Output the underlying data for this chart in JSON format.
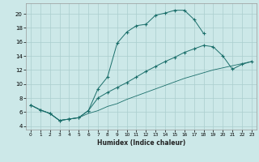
{
  "xlabel": "Humidex (Indice chaleur)",
  "background_color": "#cce8e8",
  "grid_color": "#aacece",
  "line_color": "#1a6e6a",
  "xlim": [
    -0.5,
    23.5
  ],
  "ylim": [
    3.5,
    21.5
  ],
  "xticks": [
    0,
    1,
    2,
    3,
    4,
    5,
    6,
    7,
    8,
    9,
    10,
    11,
    12,
    13,
    14,
    15,
    16,
    17,
    18,
    19,
    20,
    21,
    22,
    23
  ],
  "yticks": [
    4,
    6,
    8,
    10,
    12,
    14,
    16,
    18,
    20
  ],
  "line1_x": [
    0,
    1,
    2,
    3,
    4,
    5,
    6,
    7,
    8,
    9,
    10,
    11,
    12,
    13,
    14,
    15,
    16,
    17,
    18
  ],
  "line1_y": [
    7.0,
    6.3,
    5.8,
    4.8,
    5.0,
    5.2,
    6.2,
    9.3,
    11.0,
    15.8,
    17.4,
    18.3,
    18.5,
    19.8,
    20.1,
    20.5,
    20.5,
    19.2,
    17.2
  ],
  "line2_x": [
    0,
    1,
    2,
    3,
    4,
    5,
    6,
    7,
    8,
    9,
    10,
    11,
    12,
    13,
    14,
    15,
    16,
    17,
    18,
    19,
    20,
    21,
    22,
    23
  ],
  "line2_y": [
    7.0,
    6.3,
    5.8,
    4.8,
    5.0,
    5.2,
    5.8,
    6.2,
    6.8,
    7.2,
    7.8,
    8.3,
    8.8,
    9.3,
    9.8,
    10.3,
    10.8,
    11.2,
    11.6,
    12.0,
    12.3,
    12.6,
    12.9,
    13.2
  ],
  "line3_x": [
    0,
    1,
    2,
    3,
    4,
    5,
    6,
    7,
    8,
    9,
    10,
    11,
    12,
    13,
    14,
    15,
    16,
    17,
    18,
    19,
    20,
    21,
    22,
    23
  ],
  "line3_y": [
    7.0,
    6.3,
    5.8,
    4.8,
    5.0,
    5.2,
    6.2,
    8.0,
    8.8,
    9.5,
    10.2,
    11.0,
    11.8,
    12.5,
    13.2,
    13.8,
    14.5,
    15.0,
    15.5,
    15.3,
    14.0,
    12.1,
    12.8,
    13.2
  ]
}
